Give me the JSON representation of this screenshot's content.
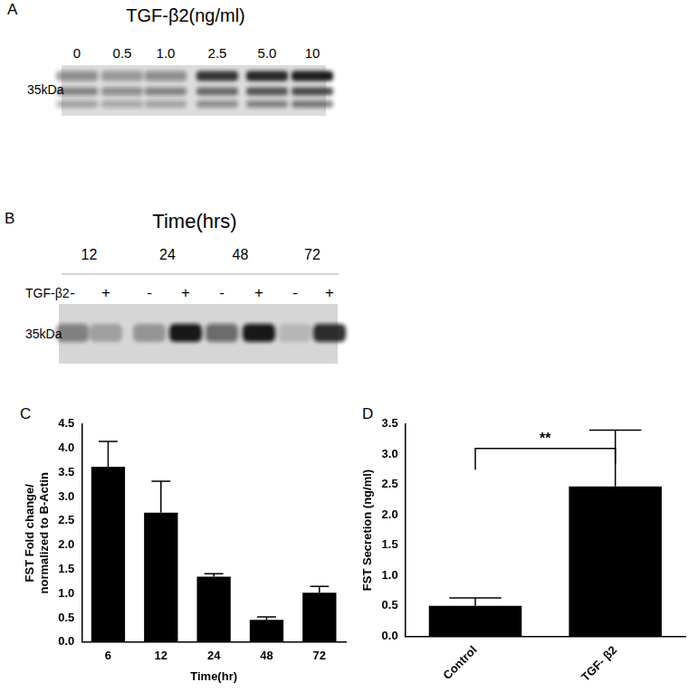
{
  "blots": [
    {
      "panel": "A",
      "title": "TGF-β2(ng/ml)",
      "lanes": [
        "0",
        "0.5",
        "1.0",
        "2.5",
        "5.0",
        "10"
      ],
      "size_label": "35kDa",
      "bands": [
        [
          0.4,
          0.35,
          0.4,
          0.85,
          0.95,
          1.0
        ],
        [
          0.45,
          0.4,
          0.45,
          0.6,
          0.7,
          0.75
        ],
        [
          0.3,
          0.28,
          0.3,
          0.4,
          0.45,
          0.5
        ]
      ]
    },
    {
      "panel": "B",
      "title": "Time(hrs)",
      "groups": [
        "12",
        "24",
        "48",
        "72"
      ],
      "row_label": "TGF-β2",
      "treatment": [
        "-",
        "+",
        "-",
        "+",
        "-",
        "+",
        "-",
        "+"
      ],
      "size_label": "35kDa",
      "bands": [
        [
          0.45,
          0.25,
          0.3,
          0.95,
          0.55,
          0.95,
          0.15,
          0.85
        ]
      ]
    }
  ],
  "chart_data": [
    {
      "type": "bar",
      "panel_label": "C",
      "categories": [
        "6",
        "12",
        "24",
        "48",
        "72"
      ],
      "values": [
        3.62,
        2.67,
        1.35,
        0.46,
        1.02
      ],
      "errors": [
        0.52,
        0.65,
        0.06,
        0.06,
        0.13
      ],
      "color": "#000000",
      "x_label": "Time(hr)",
      "y_label": [
        "FST Fold change/",
        "normalized to B-Actin"
      ],
      "ylim": [
        0,
        4.5
      ],
      "yticks": [
        {
          "value": 0,
          "label": "0.0"
        },
        {
          "value": 0.5,
          "label": "0.5"
        },
        {
          "value": 1,
          "label": "1.0"
        },
        {
          "value": 1.5,
          "label": "1.5"
        },
        {
          "value": 2,
          "label": "2.0"
        },
        {
          "value": 2.5,
          "label": "2.5"
        },
        {
          "value": 3,
          "label": "3.0"
        },
        {
          "value": 3.5,
          "label": "3.5"
        },
        {
          "value": 4,
          "label": "4.0"
        },
        {
          "value": 4.5,
          "label": "4.5"
        }
      ],
      "grid": false
    },
    {
      "type": "bar",
      "panel_label": "D",
      "categories": [
        "Control",
        "TGF- β2"
      ],
      "values": [
        0.5,
        2.47
      ],
      "errors": [
        0.13,
        0.93
      ],
      "color": "#000000",
      "y_label": "FST Secretion (ng/ml)",
      "annotation": "**",
      "ylim": [
        0,
        3.5
      ],
      "yticks": [
        {
          "value": 0,
          "label": "0.0"
        },
        {
          "value": 0.5,
          "label": "0.5"
        },
        {
          "value": 1,
          "label": "1.0"
        },
        {
          "value": 1.5,
          "label": "1.5"
        },
        {
          "value": 2,
          "label": "2.0"
        },
        {
          "value": 2.5,
          "label": "2.5"
        },
        {
          "value": 3,
          "label": "3.0"
        },
        {
          "value": 3.5,
          "label": "3.5"
        }
      ],
      "grid": false
    }
  ]
}
